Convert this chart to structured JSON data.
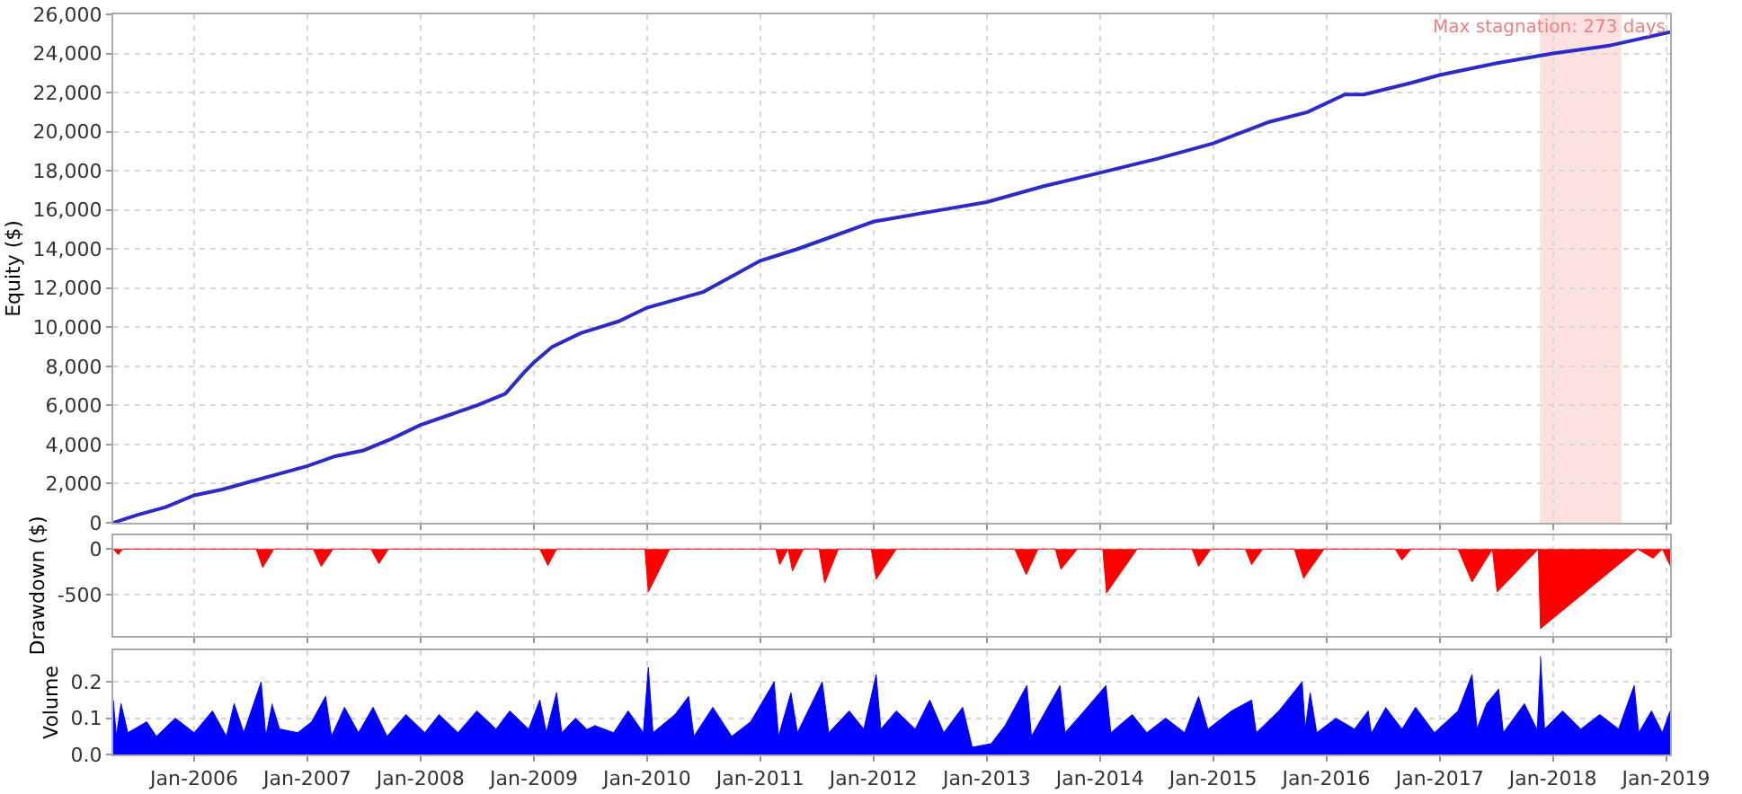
{
  "chart_data": [
    {
      "type": "line",
      "ylabel": "Equity ($)",
      "xlim": [
        "2005-04-15",
        "2019-01-14"
      ],
      "ylim": [
        0,
        26000
      ],
      "xticks": [
        {
          "value": "2006-01-01",
          "label": null
        },
        {
          "value": "2007-01-01",
          "label": null
        },
        {
          "value": "2008-01-01",
          "label": null
        },
        {
          "value": "2009-01-01",
          "label": null
        },
        {
          "value": "2010-01-01",
          "label": null
        },
        {
          "value": "2011-01-01",
          "label": null
        },
        {
          "value": "2012-01-01",
          "label": null
        },
        {
          "value": "2013-01-01",
          "label": null
        },
        {
          "value": "2014-01-01",
          "label": null
        },
        {
          "value": "2015-01-01",
          "label": null
        },
        {
          "value": "2016-01-01",
          "label": null
        },
        {
          "value": "2017-01-01",
          "label": null
        },
        {
          "value": "2018-01-01",
          "label": null
        },
        {
          "value": "2019-01-01",
          "label": null
        }
      ],
      "yticks": [
        0,
        {
          "value": 2000,
          "label": "2,000"
        },
        {
          "value": 4000,
          "label": "4,000"
        },
        {
          "value": 6000,
          "label": "6,000"
        },
        {
          "value": 8000,
          "label": "8,000"
        },
        {
          "value": 10000,
          "label": "10,000"
        },
        {
          "value": 12000,
          "label": "12,000"
        },
        {
          "value": 14000,
          "label": "14,000"
        },
        {
          "value": 16000,
          "label": "16,000"
        },
        {
          "value": 18000,
          "label": "18,000"
        },
        {
          "value": 20000,
          "label": "20,000"
        },
        {
          "value": 22000,
          "label": "22,000"
        },
        {
          "value": 24000,
          "label": "24,000"
        },
        {
          "value": 26000,
          "label": "26,000"
        }
      ],
      "tick_labels": "y",
      "grid": true,
      "bands": [
        {
          "axis": "x",
          "from": "2017-11-20",
          "to": "2018-08-10",
          "label": "Max stagnation: 273 days",
          "color": "#fde0e0"
        }
      ],
      "series": [
        {
          "color": "#2b2bc8",
          "x": [
            "2005-04-15",
            "2005-07-01",
            "2005-10-01",
            "2006-01-01",
            "2006-04-01",
            "2006-07-01",
            "2006-10-01",
            "2007-01-01",
            "2007-04-01",
            "2007-07-01",
            "2007-10-01",
            "2008-01-01",
            "2008-04-01",
            "2008-07-01",
            "2008-10-01",
            "2008-12-01",
            "2009-01-01",
            "2009-03-01",
            "2009-06-01",
            "2009-08-01",
            "2009-10-01",
            "2010-01-01",
            "2010-04-01",
            "2010-07-01",
            "2010-10-01",
            "2011-01-01",
            "2011-05-01",
            "2011-09-01",
            "2012-01-01",
            "2012-07-01",
            "2013-01-01",
            "2013-07-01",
            "2014-01-01",
            "2014-07-01",
            "2015-01-01",
            "2015-07-01",
            "2015-11-01",
            "2016-03-01",
            "2016-05-01",
            "2016-10-01",
            "2017-01-01",
            "2017-07-01",
            "2018-01-01",
            "2018-07-01",
            "2019-01-14"
          ],
          "values": [
            0,
            400,
            800,
            1400,
            1700,
            2100,
            2500,
            2900,
            3400,
            3700,
            4300,
            5000,
            5500,
            6000,
            6600,
            7700,
            8200,
            9000,
            9700,
            10000,
            10300,
            11000,
            11400,
            11800,
            12600,
            13400,
            14000,
            14700,
            15400,
            15900,
            16400,
            17200,
            17900,
            18600,
            19400,
            20500,
            21000,
            21900,
            21900,
            22500,
            22900,
            23500,
            24000,
            24400,
            25100
          ]
        }
      ]
    },
    {
      "type": "area",
      "ylabel": "Drawdown ($)",
      "xlim": [
        "2005-04-15",
        "2019-01-14"
      ],
      "ylim": [
        -950,
        150
      ],
      "xticks": [
        {
          "value": "2006-01-01",
          "label": null
        },
        {
          "value": "2007-01-01",
          "label": null
        },
        {
          "value": "2008-01-01",
          "label": null
        },
        {
          "value": "2009-01-01",
          "label": null
        },
        {
          "value": "2010-01-01",
          "label": null
        },
        {
          "value": "2011-01-01",
          "label": null
        },
        {
          "value": "2012-01-01",
          "label": null
        },
        {
          "value": "2013-01-01",
          "label": null
        },
        {
          "value": "2014-01-01",
          "label": null
        },
        {
          "value": "2015-01-01",
          "label": null
        },
        {
          "value": "2016-01-01",
          "label": null
        },
        {
          "value": "2017-01-01",
          "label": null
        },
        {
          "value": "2018-01-01",
          "label": null
        },
        {
          "value": "2019-01-01",
          "label": null
        }
      ],
      "yticks": [
        0,
        -500
      ],
      "tick_labels": "y",
      "grid": true,
      "series": [
        {
          "color": "#ff0000",
          "x": [
            "2005-04-15",
            "2005-05-01",
            "2005-05-15",
            "2006-07-20",
            "2006-08-10",
            "2006-09-15",
            "2007-01-20",
            "2007-02-15",
            "2007-03-25",
            "2007-07-25",
            "2007-08-20",
            "2007-09-20",
            "2009-01-20",
            "2009-02-15",
            "2009-03-15",
            "2009-12-25",
            "2010-01-05",
            "2010-03-15",
            "2011-02-20",
            "2011-03-05",
            "2011-04-01",
            "2011-04-15",
            "2011-05-20",
            "2011-07-10",
            "2011-07-28",
            "2011-09-10",
            "2011-12-25",
            "2012-01-10",
            "2012-03-15",
            "2013-04-01",
            "2013-05-08",
            "2013-06-15",
            "2013-08-10",
            "2013-08-28",
            "2013-10-20",
            "2014-01-10",
            "2014-01-22",
            "2014-05-01",
            "2014-10-25",
            "2014-11-15",
            "2014-12-25",
            "2015-04-15",
            "2015-05-05",
            "2015-06-10",
            "2015-09-20",
            "2015-10-20",
            "2015-11-05",
            "2015-12-25",
            "2016-08-10",
            "2016-09-01",
            "2016-10-01",
            "2017-03-01",
            "2017-04-15",
            "2017-06-20",
            "2017-07-05",
            "2017-11-15",
            "2017-11-22",
            "2018-10-01",
            "2018-11-20",
            "2018-12-20",
            "2019-01-14"
          ],
          "values": [
            0,
            -60,
            0,
            0,
            -200,
            0,
            0,
            -190,
            0,
            0,
            -160,
            0,
            0,
            -180,
            0,
            0,
            -470,
            0,
            0,
            -170,
            0,
            -240,
            0,
            0,
            -370,
            0,
            0,
            -330,
            0,
            0,
            -280,
            0,
            0,
            -220,
            0,
            0,
            -480,
            0,
            0,
            -190,
            0,
            0,
            -170,
            0,
            0,
            -320,
            -240,
            0,
            0,
            -120,
            0,
            0,
            -360,
            0,
            -470,
            0,
            -870,
            0,
            -100,
            0,
            -180
          ]
        }
      ]
    },
    {
      "type": "area",
      "ylabel": "Volume",
      "xlim": [
        "2005-04-15",
        "2019-01-14"
      ],
      "ylim": [
        0,
        0.287
      ],
      "xticks": [
        {
          "value": "2006-01-01",
          "label": "Jan-2006"
        },
        {
          "value": "2007-01-01",
          "label": "Jan-2007"
        },
        {
          "value": "2008-01-01",
          "label": "Jan-2008"
        },
        {
          "value": "2009-01-01",
          "label": "Jan-2009"
        },
        {
          "value": "2010-01-01",
          "label": "Jan-2010"
        },
        {
          "value": "2011-01-01",
          "label": "Jan-2011"
        },
        {
          "value": "2012-01-01",
          "label": "Jan-2012"
        },
        {
          "value": "2013-01-01",
          "label": "Jan-2013"
        },
        {
          "value": "2014-01-01",
          "label": "Jan-2014"
        },
        {
          "value": "2015-01-01",
          "label": "Jan-2015"
        },
        {
          "value": "2016-01-01",
          "label": "Jan-2016"
        },
        {
          "value": "2017-01-01",
          "label": "Jan-2017"
        },
        {
          "value": "2018-01-01",
          "label": "Jan-2018"
        },
        {
          "value": "2019-01-01",
          "label": "Jan-2019"
        }
      ],
      "yticks": [
        {
          "value": 0,
          "label": "0.0"
        },
        0.1,
        0.2
      ],
      "grid": true,
      "series": [
        {
          "color": "#0000ff",
          "x": [
            "2005-04-15",
            "2005-04-25",
            "2005-05-10",
            "2005-06-01",
            "2005-08-01",
            "2005-09-01",
            "2005-11-01",
            "2006-01-01",
            "2006-03-01",
            "2006-04-15",
            "2006-05-10",
            "2006-06-10",
            "2006-08-05",
            "2006-08-20",
            "2006-09-10",
            "2006-09-25",
            "2006-10-05",
            "2006-12-01",
            "2007-01-15",
            "2007-03-01",
            "2007-03-20",
            "2007-05-01",
            "2007-06-15",
            "2007-08-01",
            "2007-09-15",
            "2007-11-15",
            "2008-01-15",
            "2008-03-01",
            "2008-05-01",
            "2008-07-01",
            "2008-09-01",
            "2008-10-15",
            "2008-12-15",
            "2009-01-20",
            "2009-02-10",
            "2009-03-15",
            "2009-04-01",
            "2009-05-15",
            "2009-06-20",
            "2009-07-01",
            "2009-07-15",
            "2009-09-15",
            "2009-11-01",
            "2009-12-20",
            "2010-01-05",
            "2010-01-20",
            "2010-04-01",
            "2010-05-15",
            "2010-06-01",
            "2010-08-01",
            "2010-10-01",
            "2010-12-01",
            "2011-02-15",
            "2011-03-01",
            "2011-04-10",
            "2011-05-01",
            "2011-07-20",
            "2011-08-10",
            "2011-10-15",
            "2011-12-01",
            "2012-01-10",
            "2012-01-25",
            "2012-03-15",
            "2012-05-15",
            "2012-07-01",
            "2012-08-15",
            "2012-10-15",
            "2012-11-15",
            "2013-01-15",
            "2013-03-01",
            "2013-05-10",
            "2013-05-25",
            "2013-08-25",
            "2013-09-10",
            "2013-11-01",
            "2014-01-20",
            "2014-02-05",
            "2014-04-15",
            "2014-06-01",
            "2014-08-01",
            "2014-10-01",
            "2014-11-15",
            "2014-12-15",
            "2015-03-01",
            "2015-05-05",
            "2015-05-20",
            "2015-08-01",
            "2015-10-15",
            "2015-10-25",
            "2015-11-10",
            "2015-12-01",
            "2016-02-01",
            "2016-04-01",
            "2016-05-15",
            "2016-05-25",
            "2016-06-15",
            "2016-07-10",
            "2016-09-01",
            "2016-10-15",
            "2016-12-15",
            "2017-03-01",
            "2017-04-15",
            "2017-05-01",
            "2017-06-01",
            "2017-07-10",
            "2017-07-25",
            "2017-10-01",
            "2017-11-10",
            "2017-11-18",
            "2017-11-22",
            "2017-12-05",
            "2018-02-01",
            "2018-04-01",
            "2018-06-01",
            "2018-08-01",
            "2018-09-20",
            "2018-10-05",
            "2018-11-15",
            "2018-12-20",
            "2019-01-14"
          ],
          "values": [
            0.15,
            0.05,
            0.14,
            0.06,
            0.09,
            0.05,
            0.1,
            0.06,
            0.12,
            0.05,
            0.14,
            0.06,
            0.2,
            0.05,
            0.14,
            null,
            0.07,
            0.06,
            0.09,
            0.16,
            0.05,
            0.13,
            0.06,
            0.13,
            0.05,
            0.11,
            0.06,
            0.11,
            0.06,
            0.12,
            0.07,
            0.12,
            0.07,
            0.15,
            0.06,
            0.17,
            0.06,
            0.1,
            0.07,
            null,
            0.08,
            0.06,
            0.12,
            0.06,
            0.24,
            0.06,
            0.11,
            0.16,
            0.05,
            0.13,
            0.05,
            0.09,
            0.2,
            0.05,
            0.17,
            0.06,
            0.2,
            0.06,
            0.12,
            0.07,
            0.22,
            0.07,
            0.12,
            0.07,
            0.15,
            0.06,
            0.13,
            0.02,
            0.03,
            0.08,
            0.19,
            0.05,
            0.19,
            0.06,
            0.11,
            0.19,
            0.06,
            0.11,
            0.06,
            0.1,
            0.06,
            0.16,
            0.07,
            0.12,
            0.15,
            0.06,
            0.12,
            0.2,
            0.07,
            0.17,
            0.06,
            0.1,
            0.07,
            0.12,
            0.06,
            null,
            0.13,
            0.07,
            0.13,
            0.06,
            0.12,
            0.22,
            0.07,
            0.14,
            0.18,
            0.06,
            0.14,
            0.07,
            null,
            0.27,
            0.07,
            0.12,
            0.07,
            0.11,
            0.07,
            0.19,
            0.06,
            0.12,
            0.06,
            0.12
          ]
        }
      ]
    }
  ]
}
